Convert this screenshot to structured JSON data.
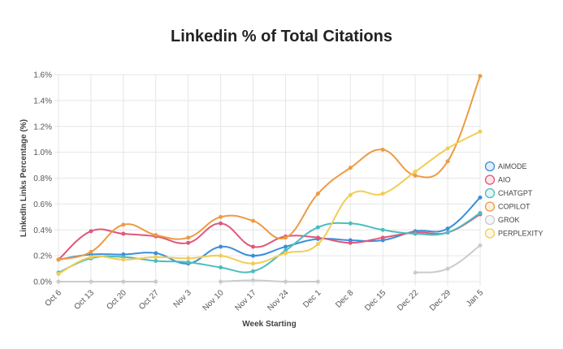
{
  "chart_data": {
    "type": "line",
    "title": "Linkedin % of Total Citations",
    "xlabel": "Week Starting",
    "ylabel": "LinkedIn Links Percentage (%)",
    "categories": [
      "Oct 6",
      "Oct 13",
      "Oct 20",
      "Oct 27",
      "Nov 3",
      "Nov 10",
      "Nov 17",
      "Nov 24",
      "Dec 1",
      "Dec 8",
      "Dec 15",
      "Dec 22",
      "Dec 29",
      "Jan 5"
    ],
    "ylim": [
      0,
      1.6
    ],
    "yticks": [
      "0.0%",
      "0.2%",
      "0.4%",
      "0.6%",
      "0.8%",
      "1.0%",
      "1.2%",
      "1.4%",
      "1.6%"
    ],
    "grid": true,
    "legend_position": "right",
    "series": [
      {
        "name": "AIMODE",
        "color": "#3b8fd9",
        "values": [
          0.17,
          0.21,
          0.21,
          0.22,
          0.14,
          0.27,
          0.2,
          0.27,
          0.33,
          0.32,
          0.32,
          0.39,
          0.41,
          0.65
        ]
      },
      {
        "name": "AIO",
        "color": "#e0577c",
        "values": [
          0.17,
          0.39,
          0.37,
          0.35,
          0.3,
          0.45,
          0.27,
          0.35,
          0.34,
          0.3,
          0.34,
          0.38,
          0.38,
          0.52
        ]
      },
      {
        "name": "CHATGPT",
        "color": "#4cbdbd",
        "values": [
          0.07,
          0.18,
          0.19,
          0.16,
          0.15,
          0.11,
          0.08,
          0.24,
          0.42,
          0.45,
          0.4,
          0.37,
          0.38,
          0.53
        ]
      },
      {
        "name": "COPILOT",
        "color": "#ee9a43",
        "values": [
          0.17,
          0.23,
          0.44,
          0.36,
          0.34,
          0.5,
          0.47,
          0.34,
          0.68,
          0.88,
          1.02,
          0.82,
          0.93,
          1.59
        ]
      },
      {
        "name": "GROK",
        "color": "#c9cbcf",
        "values": [
          0.0,
          0.0,
          0.0,
          0.0,
          null,
          0.0,
          0.01,
          0.0,
          0.0,
          null,
          null,
          0.07,
          0.1,
          0.28
        ]
      },
      {
        "name": "PERPLEXITY",
        "color": "#f2cd55",
        "values": [
          0.06,
          0.19,
          0.17,
          0.19,
          0.18,
          0.2,
          0.14,
          0.22,
          0.29,
          0.67,
          0.68,
          0.85,
          1.03,
          1.16
        ]
      }
    ]
  }
}
